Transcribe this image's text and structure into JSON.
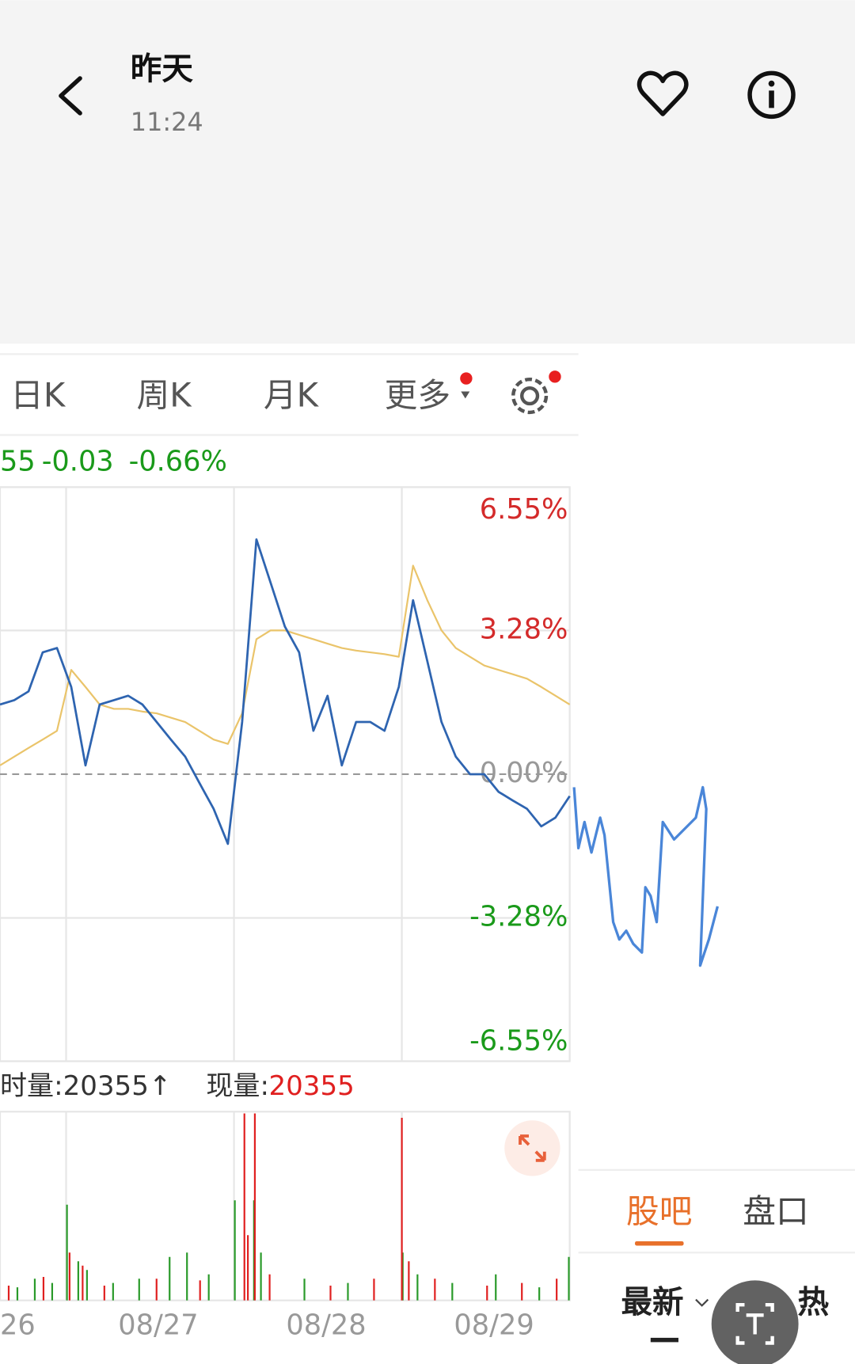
{
  "header": {
    "title": "昨天",
    "time": "11:24"
  },
  "tabs": [
    "日K",
    "周K",
    "月K",
    "更多"
  ],
  "quote": [
    "55",
    "-0.03",
    "-0.66%"
  ],
  "chart_data": {
    "type": "line",
    "ylim": [
      -6.55,
      6.55
    ],
    "yticks": [
      {
        "value": 6.55,
        "label": "6.55%"
      },
      {
        "value": 3.28,
        "label": "3.28%"
      },
      {
        "value": 0,
        "label": "0.00%"
      },
      {
        "value": -3.28,
        "label": "-3.28%"
      },
      {
        "value": -6.55,
        "label": "-6.55%"
      }
    ],
    "grid": true,
    "xtick_labels": [
      "26",
      "08/27",
      "08/28",
      "08/29"
    ],
    "series": [
      {
        "color": "#2e64b0",
        "values": [
          1.59,
          1.69,
          1.89,
          2.78,
          2.88,
          1.99,
          0.2,
          1.59,
          1.69,
          1.79,
          1.59,
          1.19,
          0.79,
          0.4,
          -0.2,
          -0.79,
          -1.59,
          1.19,
          5.36,
          4.37,
          3.37,
          2.78,
          0.99,
          1.79,
          0.2,
          1.19,
          1.19,
          0.99,
          1.99,
          3.97,
          2.58,
          1.19,
          0.4,
          0,
          0,
          -0.4,
          -0.6,
          -0.79,
          -1.19,
          -0.99,
          -0.5
        ]
      },
      {
        "color": "#eac46a",
        "values": [
          0.2,
          0.4,
          0.6,
          0.79,
          0.99,
          2.38,
          1.99,
          1.59,
          1.49,
          1.49,
          1.43,
          1.39,
          1.29,
          1.19,
          0.99,
          0.79,
          0.69,
          1.39,
          3.08,
          3.28,
          3.28,
          3.18,
          3.08,
          2.98,
          2.88,
          2.82,
          2.78,
          2.74,
          2.68,
          4.76,
          3.97,
          3.28,
          2.88,
          2.68,
          2.48,
          2.38,
          2.28,
          2.18,
          1.99,
          1.79,
          1.59
        ]
      }
    ]
  },
  "volume": {
    "label": "时量:20355↑",
    "current_label": "现量:",
    "current_value": "20355"
  },
  "panel": {
    "tabs": [
      "股吧",
      "盘口"
    ],
    "sort": [
      "最新",
      "热"
    ]
  }
}
